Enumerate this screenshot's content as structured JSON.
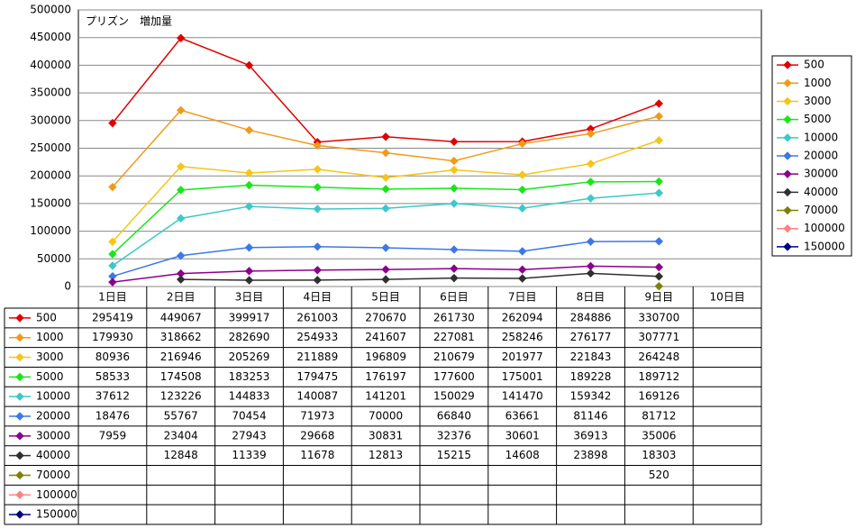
{
  "chart_data": {
    "type": "line",
    "title": "プリズン　増加量",
    "categories": [
      "1日目",
      "2日目",
      "3日目",
      "4日目",
      "5日目",
      "6日目",
      "7日目",
      "8日目",
      "9日目",
      "10日目"
    ],
    "ylim": [
      0,
      500000
    ],
    "yticks": [
      0,
      50000,
      100000,
      150000,
      200000,
      250000,
      300000,
      350000,
      400000,
      450000,
      500000
    ],
    "grid": true,
    "legend": "right",
    "series": [
      {
        "name": "500",
        "color": "#e00000",
        "values": [
          295419,
          449067,
          399917,
          261003,
          270670,
          261730,
          262094,
          284886,
          330700,
          null
        ]
      },
      {
        "name": "1000",
        "color": "#f09a1a",
        "values": [
          179930,
          318662,
          282690,
          254933,
          241607,
          227081,
          258246,
          276177,
          307771,
          null
        ]
      },
      {
        "name": "3000",
        "color": "#f5c518",
        "values": [
          80936,
          216946,
          205269,
          211889,
          196809,
          210679,
          201977,
          221843,
          264248,
          null
        ]
      },
      {
        "name": "5000",
        "color": "#19e619",
        "values": [
          58533,
          174508,
          183253,
          179475,
          176197,
          177600,
          175001,
          189228,
          189712,
          null
        ]
      },
      {
        "name": "10000",
        "color": "#3cc8c8",
        "values": [
          37612,
          123226,
          144833,
          140087,
          141201,
          150029,
          141470,
          159342,
          169126,
          null
        ]
      },
      {
        "name": "20000",
        "color": "#3c78e6",
        "values": [
          18476,
          55767,
          70454,
          71973,
          70000,
          66840,
          63661,
          81146,
          81712,
          null
        ]
      },
      {
        "name": "30000",
        "color": "#8b008b",
        "values": [
          7959,
          23404,
          27943,
          29668,
          30831,
          32376,
          30601,
          36913,
          35006,
          null
        ]
      },
      {
        "name": "40000",
        "color": "#303030",
        "values": [
          null,
          12848,
          11339,
          11678,
          12813,
          15215,
          14608,
          23898,
          18303,
          null
        ]
      },
      {
        "name": "70000",
        "color": "#808000",
        "values": [
          null,
          null,
          null,
          null,
          null,
          null,
          null,
          null,
          520,
          null
        ]
      },
      {
        "name": "100000",
        "color": "#ff8080",
        "values": [
          null,
          null,
          null,
          null,
          null,
          null,
          null,
          null,
          null,
          null
        ]
      },
      {
        "name": "150000",
        "color": "#000080",
        "values": [
          null,
          null,
          null,
          null,
          null,
          null,
          null,
          null,
          null,
          null
        ]
      }
    ]
  }
}
